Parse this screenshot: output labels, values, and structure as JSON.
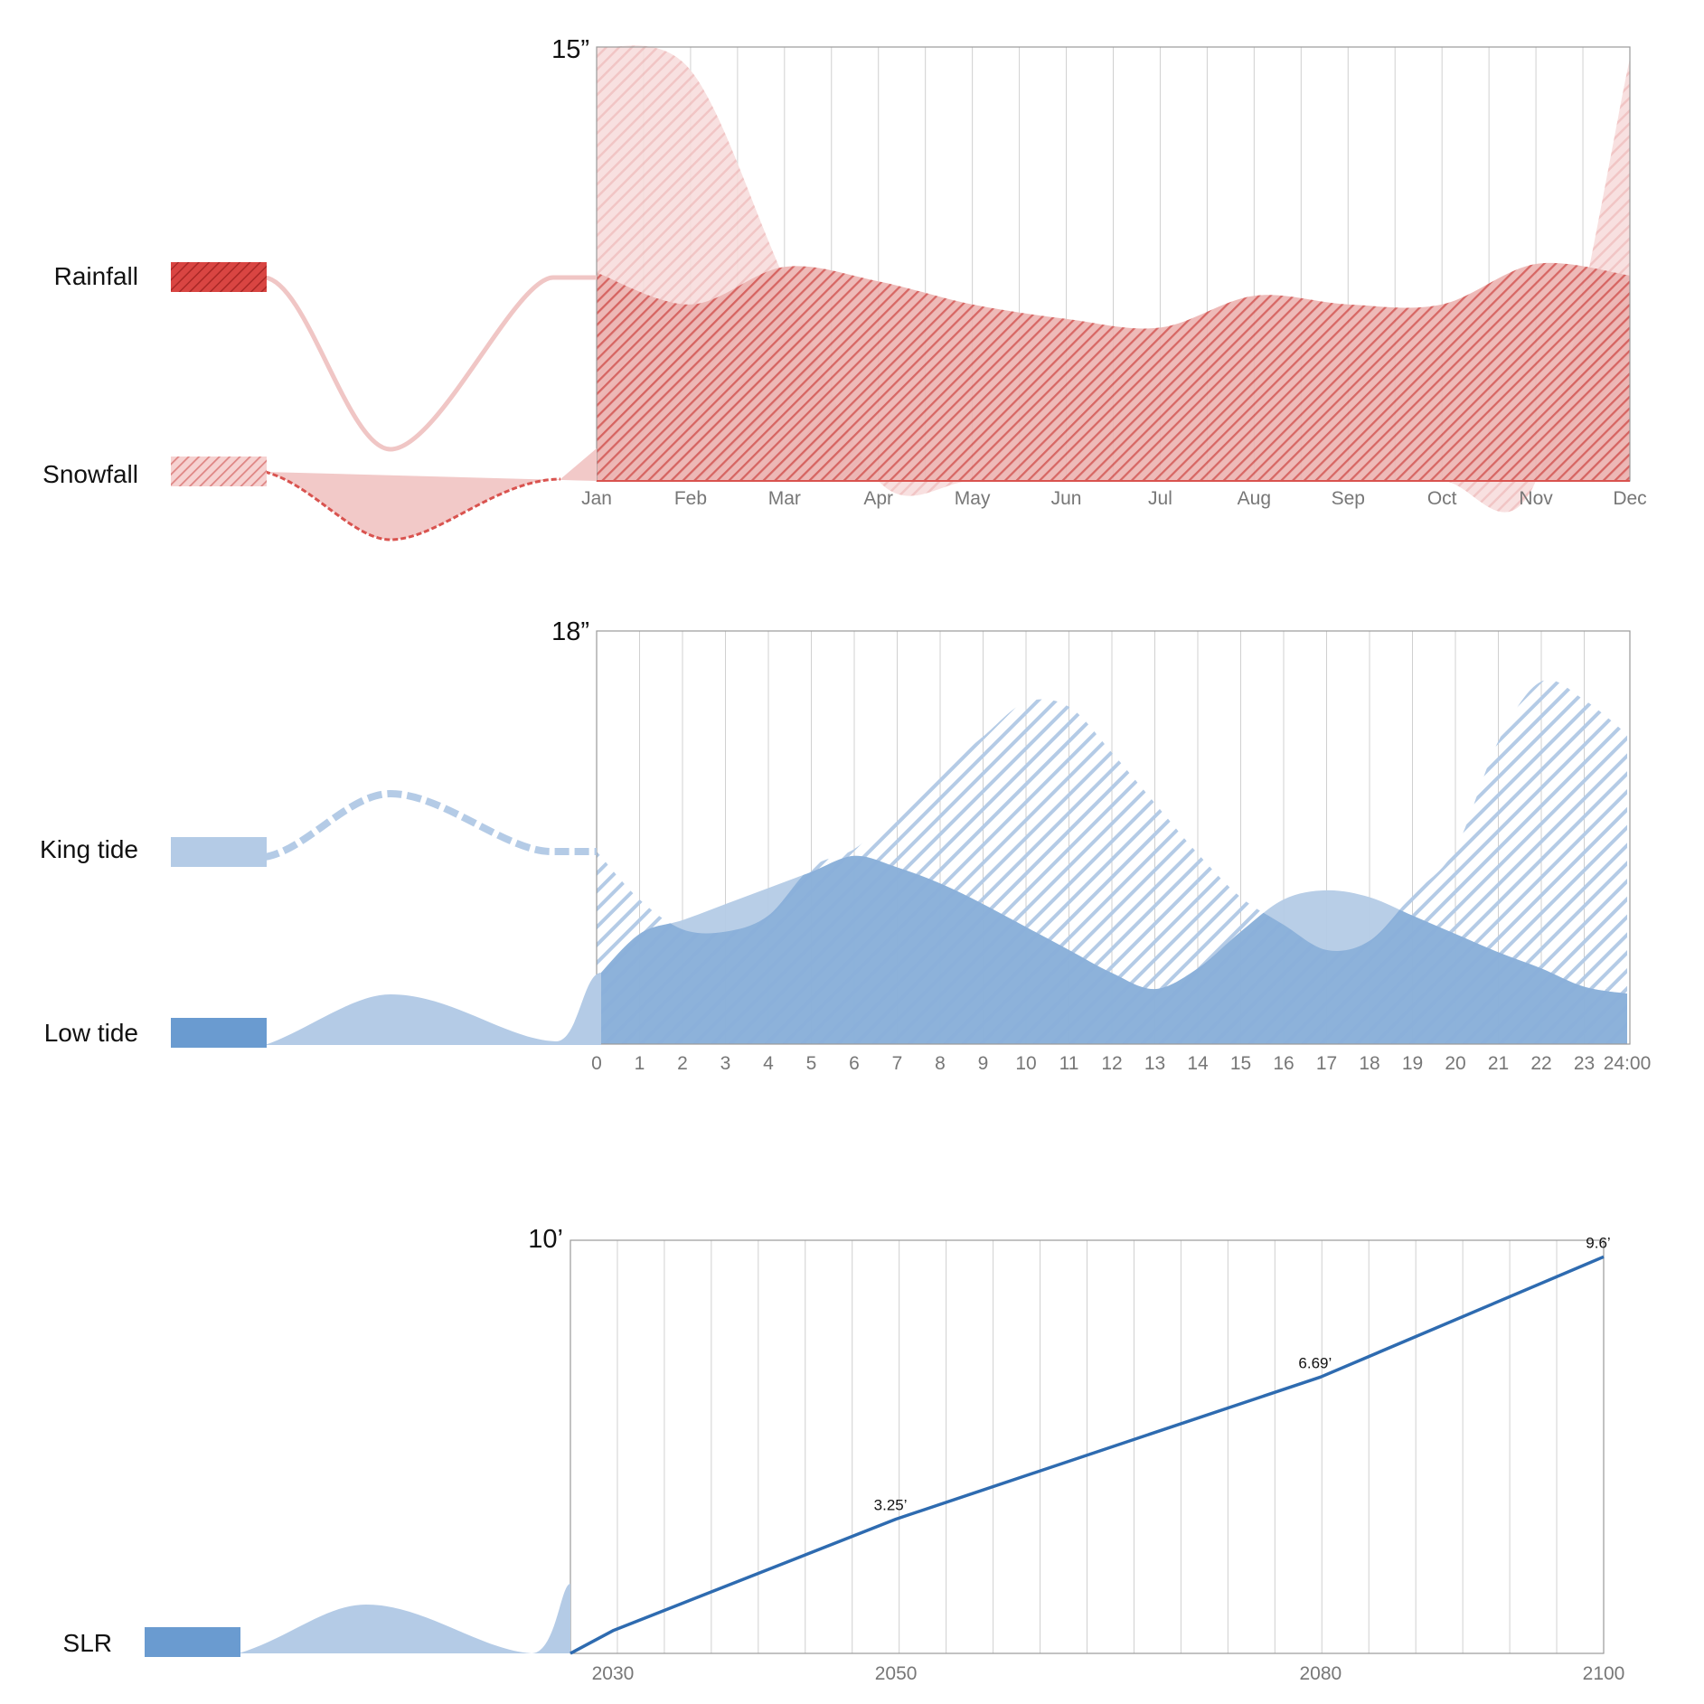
{
  "colors": {
    "rain": "#d9534f",
    "rain_light": "#f2c9c8",
    "tide_light": "#b4cbe6",
    "tide_dark": "#6a9bd0",
    "slr_line": "#2e6bb0",
    "grid": "#d0d0d0",
    "frame": "#9a9a9a"
  },
  "chart_data": [
    {
      "type": "area",
      "y_max_label": "15”",
      "ylim": [
        0,
        15
      ],
      "grid": true,
      "categories": [
        "Jan",
        "Feb",
        "Mar",
        "Apr",
        "May",
        "Jun",
        "Jul",
        "Aug",
        "Sep",
        "Oct",
        "Nov",
        "Dec"
      ],
      "series": [
        {
          "name": "Rainfall",
          "values": [
            7.2,
            6.1,
            7.4,
            6.9,
            6.1,
            5.6,
            5.3,
            6.4,
            6.1,
            6.1,
            7.5,
            7.1
          ]
        },
        {
          "name": "Snowfall",
          "values": [
            15.0,
            14.2,
            7.0,
            0.0,
            0.0,
            0.0,
            0.0,
            0.0,
            0.0,
            0.0,
            0.0,
            14.6
          ]
        }
      ]
    },
    {
      "type": "area",
      "y_max_label": "18”",
      "ylim": [
        0,
        18
      ],
      "grid": true,
      "categories": [
        "0",
        "1",
        "2",
        "3",
        "4",
        "5",
        "6",
        "7",
        "8",
        "9",
        "10",
        "11",
        "12",
        "13",
        "14",
        "15",
        "16",
        "17",
        "18",
        "19",
        "20",
        "21",
        "22",
        "23",
        "24:00"
      ],
      "series": [
        {
          "name": "King tide",
          "values": [
            8.4,
            6.3,
            5.0,
            4.9,
            5.6,
            7.7,
            8.5,
            10.1,
            11.8,
            13.4,
            14.9,
            14.7,
            12.7,
            10.5,
            8.3,
            6.4,
            5.2,
            4.1,
            4.5,
            6.5,
            8.5,
            13.2,
            15.8,
            15.0,
            13.5
          ]
        },
        {
          "name": "Low tide",
          "values": [
            2.9,
            4.8,
            5.4,
            6.1,
            6.8,
            7.5,
            8.2,
            7.7,
            7.0,
            6.1,
            5.1,
            4.1,
            3.1,
            2.4,
            3.3,
            4.9,
            6.3,
            6.7,
            6.4,
            5.6,
            4.8,
            4.0,
            3.3,
            2.5,
            2.2
          ]
        }
      ]
    },
    {
      "type": "line",
      "y_max_label": "10’",
      "ylim": [
        0,
        10
      ],
      "grid": true,
      "tick_labels": [
        "2030",
        "2050",
        "2080",
        "2100"
      ],
      "series": [
        {
          "name": "SLR",
          "x": [
            2027,
            2030,
            2050,
            2080,
            2100
          ],
          "values": [
            0,
            0.55,
            3.25,
            6.69,
            9.6
          ],
          "data_labels": [
            "",
            "",
            "3.25’",
            "6.69’",
            "9.6’"
          ]
        }
      ]
    }
  ]
}
